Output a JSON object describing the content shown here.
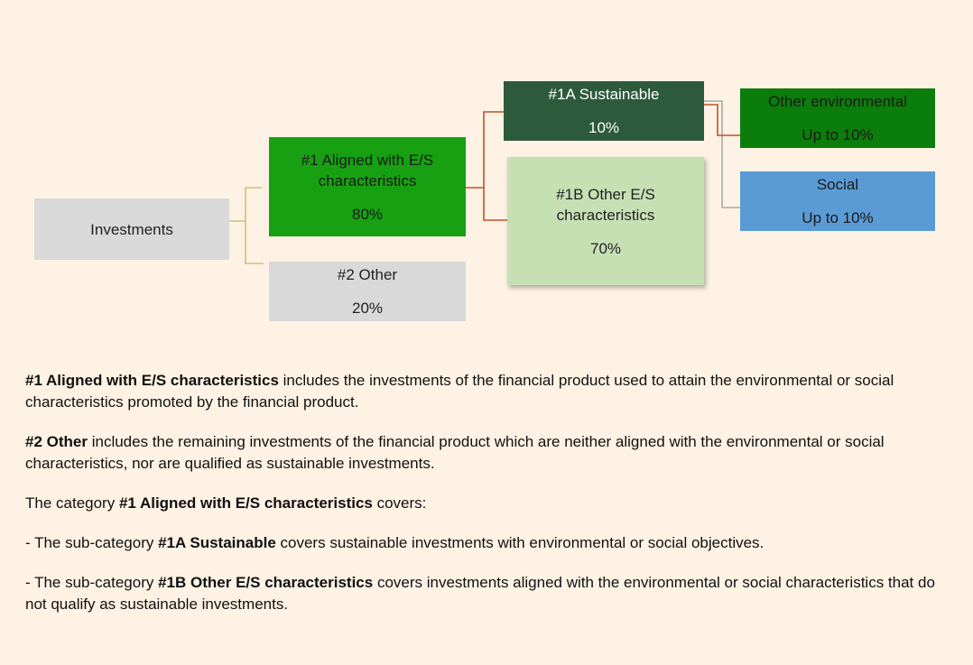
{
  "nodes": [
    {
      "label": "Investments"
    },
    {
      "label": "#1 Aligned with E/S characteristics",
      "value": "80%"
    },
    {
      "label": "#2 Other",
      "value": "20%"
    },
    {
      "label": "#1A Sustainable",
      "value": "10%"
    },
    {
      "label": "#1B Other E/S characteristics",
      "value": "70%"
    },
    {
      "label": "Other environmental",
      "value": "Up to 10%"
    },
    {
      "label": "Social",
      "value": "Up to 10%"
    }
  ],
  "paragraphs": [
    [
      {
        "text": "#1 Aligned with E/S characteristics",
        "bold": true
      },
      {
        "text": " includes the investments of the financial product used to attain the environmental or social characteristics promoted by the financial product."
      }
    ],
    [
      {
        "text": "#2 Other",
        "bold": true
      },
      {
        "text": " includes the remaining investments of the financial product which are neither aligned with the environmental or social characteristics, nor are qualified as sustainable investments."
      }
    ],
    [
      {
        "text": "The category "
      },
      {
        "text": "#1 Aligned with E/S characteristics",
        "bold": true
      },
      {
        "text": " covers:"
      }
    ],
    [
      {
        "text": "- The sub-category "
      },
      {
        "text": "#1A Sustainable",
        "bold": true
      },
      {
        "text": " covers sustainable investments with environmental or social objectives."
      }
    ],
    [
      {
        "text": "- The sub-category "
      },
      {
        "text": "#1B Other E/S characteristics",
        "bold": true
      },
      {
        "text": " covers investments aligned with the environmental or social characteristics that do not qualify as sustainable investments."
      }
    ]
  ]
}
